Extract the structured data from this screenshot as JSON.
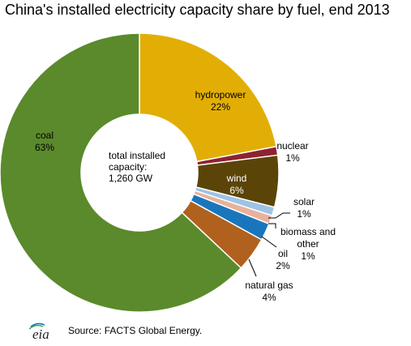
{
  "title": "China's installed electricity capacity share by fuel, end 2013",
  "source": "Source: FACTS Global Energy.",
  "logo_text": "eia",
  "center_label": [
    "total installed",
    "capacity:",
    "1,260 GW"
  ],
  "colors": {
    "coal": "#5a8a2b",
    "hydropower": "#e2ae06",
    "nuclear": "#8e2230",
    "wind": "#5b4407",
    "solar": "#9dc3e6",
    "biomass_and_other": "#e8b29a",
    "oil": "#1a76bc",
    "natural_gas": "#b0611e"
  },
  "chart_data": {
    "type": "pie",
    "style": "donut",
    "title": "China's installed electricity capacity share by fuel, end 2013",
    "slices": [
      {
        "name": "hydropower",
        "value": 22,
        "label_lines": [
          "hydropower",
          "22%"
        ],
        "color_key": "hydropower"
      },
      {
        "name": "nuclear",
        "value": 1,
        "label_lines": [
          "nuclear",
          "1%"
        ],
        "color_key": "nuclear"
      },
      {
        "name": "wind",
        "value": 6,
        "label_lines": [
          "wind",
          "6%"
        ],
        "color_key": "wind"
      },
      {
        "name": "solar",
        "value": 1,
        "label_lines": [
          "solar",
          "1%"
        ],
        "color_key": "solar"
      },
      {
        "name": "biomass and other",
        "value": 1,
        "label_lines": [
          "biomass and",
          "other",
          "1%"
        ],
        "color_key": "biomass_and_other"
      },
      {
        "name": "oil",
        "value": 2,
        "label_lines": [
          "oil",
          "2%"
        ],
        "color_key": "oil"
      },
      {
        "name": "natural gas",
        "value": 4,
        "label_lines": [
          "natural gas",
          "4%"
        ],
        "color_key": "natural_gas"
      },
      {
        "name": "coal",
        "value": 63,
        "label_lines": [
          "coal",
          "63%"
        ],
        "color_key": "coal"
      }
    ]
  }
}
